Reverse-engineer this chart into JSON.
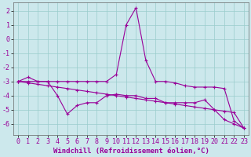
{
  "xlabel": "Windchill (Refroidissement éolien,°C)",
  "background_color": "#cce8ec",
  "grid_color": "#99cccc",
  "line_color": "#990099",
  "x_hours": [
    0,
    1,
    2,
    3,
    4,
    5,
    6,
    7,
    8,
    9,
    10,
    11,
    12,
    13,
    14,
    15,
    16,
    17,
    18,
    19,
    20,
    21,
    22,
    23
  ],
  "series1": [
    -3.0,
    -2.7,
    -3.0,
    -3.0,
    -3.0,
    -3.0,
    -3.0,
    -3.0,
    -3.0,
    -3.0,
    -2.5,
    1.0,
    2.2,
    -1.5,
    -3.0,
    -3.0,
    -3.1,
    -3.3,
    -3.4,
    -3.4,
    -3.4,
    -3.5,
    -5.8,
    -6.3
  ],
  "series2": [
    -3.0,
    -3.0,
    -3.0,
    -3.0,
    -4.0,
    -5.3,
    -4.7,
    -4.5,
    -4.5,
    -4.0,
    -3.9,
    -4.0,
    -4.0,
    -4.2,
    -4.2,
    -4.5,
    -4.5,
    -4.5,
    -4.5,
    -4.3,
    -5.0,
    -5.7,
    -6.0,
    -6.3
  ],
  "series3": [
    -3.0,
    -3.1,
    -3.2,
    -3.3,
    -3.4,
    -3.5,
    -3.6,
    -3.7,
    -3.8,
    -3.9,
    -4.0,
    -4.1,
    -4.2,
    -4.3,
    -4.4,
    -4.5,
    -4.6,
    -4.7,
    -4.8,
    -4.9,
    -5.0,
    -5.1,
    -5.2,
    -6.3
  ],
  "ylim": [
    -6.8,
    2.6
  ],
  "yticks": [
    -6,
    -5,
    -4,
    -3,
    -2,
    -1,
    0,
    1,
    2
  ],
  "tick_color": "#990099",
  "xlabel_fontsize": 6.5,
  "tick_fontsize": 6.0
}
